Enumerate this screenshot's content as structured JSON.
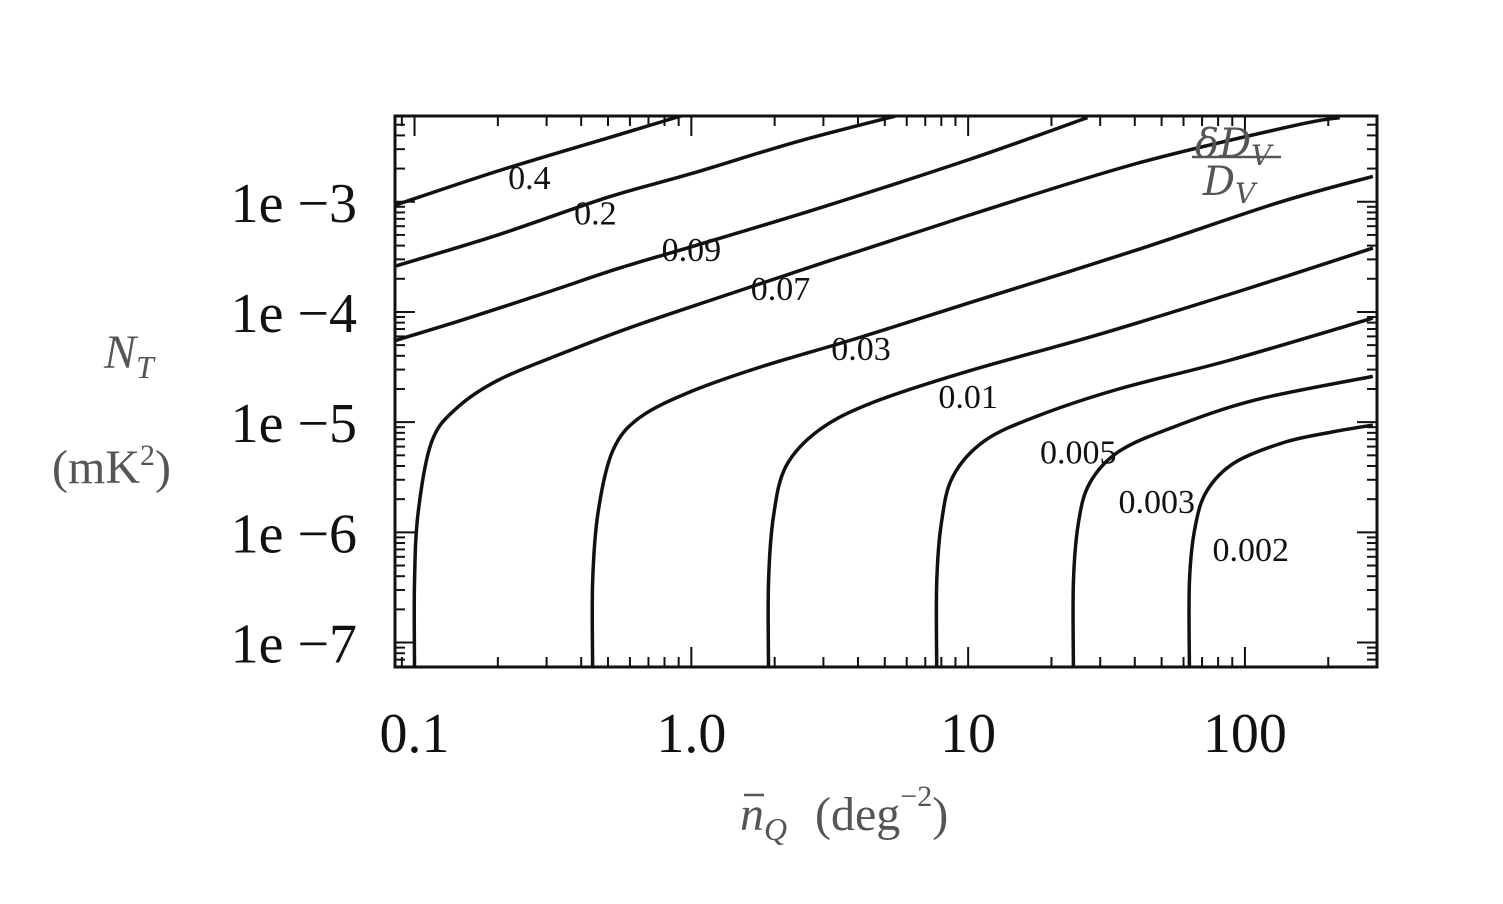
{
  "chart_data": {
    "type": "contour",
    "title": "",
    "xlabel": {
      "symbol": "n",
      "subscript": "Q",
      "unit_prefix": "(deg",
      "unit_exponent": "−2",
      "unit_suffix": ")"
    },
    "ylabel": {
      "symbol": "N",
      "subscript": "T",
      "unit_prefix": "(mK",
      "unit_exponent": "2",
      "unit_suffix": ")"
    },
    "contour_quantity": {
      "numerator": "δD",
      "numerator_subscript": "V",
      "denominator": "D",
      "denominator_subscript": "V"
    },
    "x_scale": "log",
    "y_scale": "log",
    "xlim": [
      0.085,
      300
    ],
    "ylim": [
      6e-08,
      0.006
    ],
    "x_ticks": [
      {
        "value": 0.1,
        "label": "0.1"
      },
      {
        "value": 1,
        "label": "1.0"
      },
      {
        "value": 10,
        "label": "10"
      },
      {
        "value": 100,
        "label": "100"
      }
    ],
    "y_ticks": [
      {
        "value": 0.001,
        "label": "1e −3"
      },
      {
        "value": 0.0001,
        "label": "1e −4"
      },
      {
        "value": 1e-05,
        "label": "1e −5"
      },
      {
        "value": 1e-06,
        "label": "1e −6"
      },
      {
        "value": 1e-07,
        "label": "1e −7"
      }
    ],
    "contours": [
      {
        "level": "0.4",
        "label_at": [
          0.26,
          0.0013
        ],
        "label_size": 34,
        "points": [
          [
            0.085,
            0.00093
          ],
          [
            0.2,
            0.0019
          ],
          [
            0.5,
            0.0038
          ],
          [
            1.3,
            0.0078
          ],
          [
            1.7,
            0.0095
          ]
        ]
      },
      {
        "level": "0.2",
        "label_at": [
          0.45,
          0.00062
        ],
        "label_size": 34,
        "points": [
          [
            0.085,
            0.00026
          ],
          [
            0.2,
            0.0005
          ],
          [
            0.5,
            0.0011
          ],
          [
            1.0,
            0.0018
          ],
          [
            2.5,
            0.0036
          ],
          [
            7.0,
            0.007
          ]
        ]
      },
      {
        "level": "0.09",
        "label_at": [
          1.0,
          0.00029
        ],
        "label_size": 34,
        "points": [
          [
            0.085,
            5.5e-05
          ],
          [
            0.15,
            8.5e-05
          ],
          [
            0.3,
            0.00015
          ],
          [
            0.55,
            0.00025
          ],
          [
            1.0,
            0.00039
          ],
          [
            3.0,
            0.0009
          ],
          [
            10,
            0.0024
          ],
          [
            27,
            0.0058
          ]
        ]
      },
      {
        "level": "0.07",
        "label_at": [
          2.1,
          0.000129
        ],
        "label_size": 34,
        "points": [
          [
            0.1,
            6e-08
          ],
          [
            0.1,
            3.5e-07
          ],
          [
            0.103,
            1.5e-06
          ],
          [
            0.115,
            6.5e-06
          ],
          [
            0.14,
            1.3e-05
          ],
          [
            0.2,
            2.4e-05
          ],
          [
            0.35,
            4.3e-05
          ],
          [
            0.6,
            7.2e-05
          ],
          [
            1.2,
            0.00013
          ],
          [
            3,
            0.00028
          ],
          [
            10,
            0.00075
          ],
          [
            40,
            0.0022
          ],
          [
            150,
            0.0049
          ],
          [
            220,
            0.0058
          ]
        ]
      },
      {
        "level": "0.03",
        "label_at": [
          4.1,
          3.65e-05
        ],
        "label_size": 34,
        "points": [
          [
            0.44,
            6e-08
          ],
          [
            0.44,
            3.5e-07
          ],
          [
            0.46,
            1.5e-06
          ],
          [
            0.52,
            5.5e-06
          ],
          [
            0.65,
            1.1e-05
          ],
          [
            1.0,
            1.9e-05
          ],
          [
            1.8,
            3.2e-05
          ],
          [
            4,
            5.8e-05
          ],
          [
            10,
            0.00012
          ],
          [
            40,
            0.00036
          ],
          [
            130,
            0.00097
          ],
          [
            290,
            0.0017
          ]
        ]
      },
      {
        "level": "0.01",
        "label_at": [
          10,
          1.35e-05
        ],
        "label_size": 30,
        "points": [
          [
            1.9,
            6e-08
          ],
          [
            1.9,
            3.5e-07
          ],
          [
            1.98,
            1.4e-06
          ],
          [
            2.2,
            4e-06
          ],
          [
            2.9,
            8.5e-06
          ],
          [
            4.5,
            1.5e-05
          ],
          [
            10,
            2.9e-05
          ],
          [
            30,
            6.3e-05
          ],
          [
            100,
            0.00016
          ],
          [
            290,
            0.00038
          ]
        ]
      },
      {
        "level": "0.005",
        "label_at": [
          25,
          4.2e-06
        ],
        "label_size": 34,
        "points": [
          [
            7.7,
            6e-08
          ],
          [
            7.7,
            3.5e-07
          ],
          [
            8.0,
            1.2e-06
          ],
          [
            8.8,
            3.2e-06
          ],
          [
            11.5,
            6.8e-06
          ],
          [
            18,
            1.15e-05
          ],
          [
            35,
            2e-05
          ],
          [
            90,
            3.7e-05
          ],
          [
            290,
            8.8e-05
          ]
        ]
      },
      {
        "level": "0.003",
        "label_at": [
          48,
          1.5e-06
        ],
        "label_size": 30,
        "points": [
          [
            24,
            6e-08
          ],
          [
            24,
            3.5e-07
          ],
          [
            25,
            1.2e-06
          ],
          [
            27.5,
            2.8e-06
          ],
          [
            35,
            5.4e-06
          ],
          [
            55,
            9e-06
          ],
          [
            110,
            1.6e-05
          ],
          [
            290,
            2.6e-05
          ]
        ]
      },
      {
        "level": "0.002",
        "label_at": [
          105,
          5.5e-07
        ],
        "label_size": 38,
        "points": [
          [
            63,
            6e-08
          ],
          [
            63,
            3.5e-07
          ],
          [
            66,
            1.1e-06
          ],
          [
            73,
            2.4e-06
          ],
          [
            92,
            4.3e-06
          ],
          [
            140,
            6.6e-06
          ],
          [
            210,
            8.2e-06
          ],
          [
            290,
            9.4e-06
          ]
        ]
      }
    ]
  }
}
